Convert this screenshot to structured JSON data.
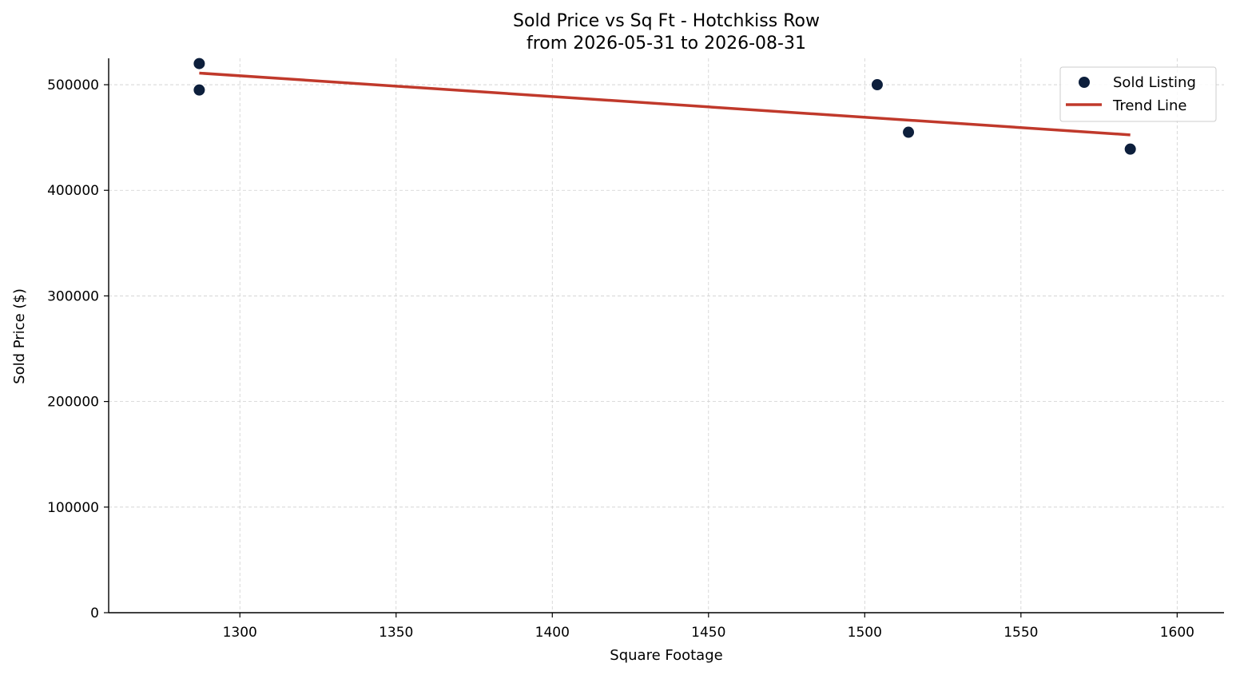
{
  "chart_data": {
    "type": "scatter",
    "title": "Sold Price vs Sq Ft - Hotchkiss Row",
    "subtitle": "from 2026-05-31 to 2026-08-31",
    "xlabel": "Square Footage",
    "ylabel": "Sold Price ($)",
    "xlim": [
      1258,
      1615
    ],
    "ylim": [
      0,
      525000
    ],
    "xticks": [
      1300,
      1350,
      1400,
      1450,
      1500,
      1550,
      1600
    ],
    "yticks": [
      0,
      100000,
      200000,
      300000,
      400000,
      500000
    ],
    "grid": true,
    "legend_position": "top-right",
    "series": [
      {
        "name": "Sold Listing",
        "kind": "scatter",
        "color": "#0d1f3c",
        "points": [
          {
            "x": 1287,
            "y": 520000
          },
          {
            "x": 1287,
            "y": 495000
          },
          {
            "x": 1504,
            "y": 500000
          },
          {
            "x": 1514,
            "y": 455000
          },
          {
            "x": 1585,
            "y": 439000
          }
        ]
      },
      {
        "name": "Trend Line",
        "kind": "line",
        "color": "#c0392b",
        "points": [
          {
            "x": 1287,
            "y": 511000
          },
          {
            "x": 1585,
            "y": 452500
          }
        ]
      }
    ]
  }
}
